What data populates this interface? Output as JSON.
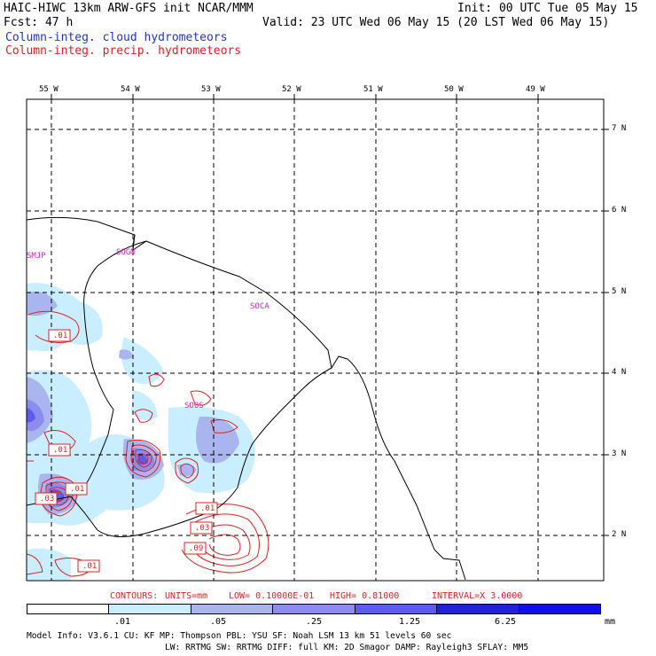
{
  "header": {
    "title_left": "HAIC-HIWC 13km ARW-GFS init   NCAR/MMM",
    "init": "Init: 00 UTC Tue 05 May 15",
    "fcst": "Fcst:   47 h",
    "valid": "Valid: 23 UTC Wed 06 May 15 (20 LST Wed 06 May 15)",
    "legend_cloud": "Column-integ. cloud hydrometeors",
    "legend_precip": "Column-integ. precip. hydrometeors"
  },
  "axes": {
    "lon_labels": [
      "55 W",
      "54 W",
      "53 W",
      "52 W",
      "51 W",
      "50 W",
      "49 W"
    ],
    "lat_labels": [
      "7 N",
      "6 N",
      "5 N",
      "4 N",
      "3 N",
      "2 N"
    ]
  },
  "stations": [
    "SMJP",
    "SOGM",
    "SOCA",
    "SOOS"
  ],
  "contour_labels": [
    ".01",
    ".01",
    ".01",
    ".03",
    ".01",
    ".03",
    ".09",
    ".01"
  ],
  "contours_info": {
    "prefix": "CONTOURS:",
    "units": "UNITS=mm",
    "low": "LOW= 0.10000E-01",
    "high": "HIGH= 0.81000",
    "interval": "INTERVAL=X  3.0000"
  },
  "colorbar": {
    "labels": [
      ".01",
      ".05",
      ".25",
      "1.25",
      "6.25"
    ],
    "unit": "mm",
    "colors": [
      "#ffffff",
      "#c8eeff",
      "#aab4ee",
      "#8c8cee",
      "#5c5cee",
      "#2020dd",
      "#1010ee"
    ]
  },
  "model_info": {
    "line1": "Model Info: V3.6.1    CU: KF       MP: Thompson    PBL: YSU      SF: Noah LSM     13 km   51 levels   60 sec",
    "line2": "LW: RRTMG    SW: RRTMG  DIFF: full    KM: 2D Smagor DAMP: Rayleigh3   SFLAY: MM5"
  }
}
